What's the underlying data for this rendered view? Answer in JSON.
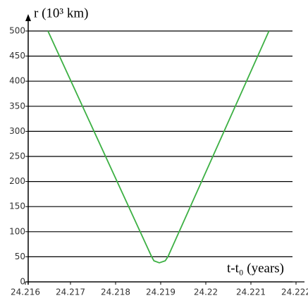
{
  "chart_data": {
    "type": "line",
    "ylabel": "r (10³ km)",
    "xlabel": "t-t₀ (years)",
    "x": [
      24.2165,
      24.2188,
      24.21885,
      24.21897,
      24.2191,
      24.21916,
      24.2214
    ],
    "series": [
      {
        "color": "#3cb043",
        "values": [
          500,
          50,
          42,
          38,
          42,
          50,
          500
        ]
      }
    ],
    "xlim": [
      24.216,
      24.222
    ],
    "xticks": [
      24.216,
      24.217,
      24.218,
      24.219,
      24.22,
      24.221,
      24.222
    ],
    "ylim": [
      0,
      500
    ],
    "yticks": [
      0,
      50,
      100,
      150,
      200,
      250,
      300,
      350,
      400,
      450,
      500
    ],
    "grid": true
  }
}
